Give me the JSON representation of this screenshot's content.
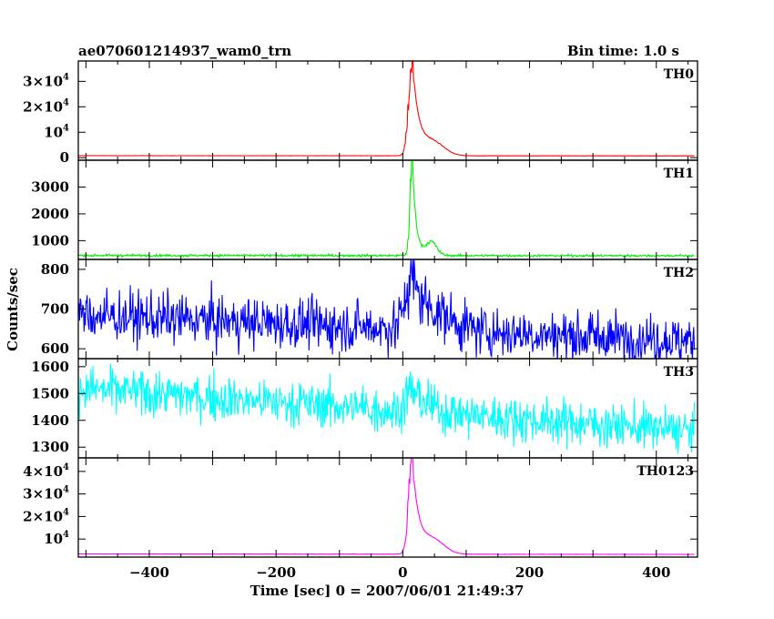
{
  "header": {
    "title": "ae070601214937_wam0_trn",
    "bin_time": "Bin time: 1.0 s"
  },
  "axes": {
    "xlabel": "Time [sec] 0 = 2007/06/01 21:49:37",
    "ylabel": "Counts/sec"
  },
  "chart_data": {
    "type": "line",
    "title": "ae070601214937_wam0_trn",
    "subtitle": "Bin time: 1.0 s",
    "xlabel": "Time [sec] 0 = 2007/06/01 21:49:37",
    "ylabel": "Counts/sec",
    "xlim": [
      -512,
      465
    ],
    "x_ticks": [
      -400,
      -200,
      0,
      200,
      400
    ],
    "x_tick_labels": [
      "−400",
      "−200",
      "0",
      "200",
      "400"
    ],
    "panels": [
      {
        "name": "TH0",
        "color": "#ff0000",
        "ylim": [
          -1000,
          38000
        ],
        "yticks": [
          {
            "value": 0,
            "mant": "0",
            "exp": ""
          },
          {
            "value": 10000,
            "mant": "10",
            "exp": "4"
          },
          {
            "value": 20000,
            "mant": "2×10",
            "exp": "4"
          },
          {
            "value": 30000,
            "mant": "3×10",
            "exp": "4"
          }
        ],
        "base": 800,
        "base_end": 700,
        "noise": 40,
        "burst": {
          "peak_time": 15,
          "peak": 38000,
          "rise": 8,
          "decay": 10
        },
        "shoulder": {
          "time": 48,
          "value": 5000,
          "width": 25
        }
      },
      {
        "name": "TH1",
        "color": "#00ee00",
        "ylim": [
          300,
          4000
        ],
        "yticks": [
          {
            "value": 1000,
            "mant": "1000",
            "exp": ""
          },
          {
            "value": 2000,
            "mant": "2000",
            "exp": ""
          },
          {
            "value": 3000,
            "mant": "3000",
            "exp": ""
          }
        ],
        "base": 450,
        "base_end": 440,
        "noise": 30,
        "burst": {
          "peak_time": 15,
          "peak": 3950,
          "rise": 5,
          "decay": 6
        },
        "shoulder": {
          "time": 45,
          "value": 500,
          "width": 12
        }
      },
      {
        "name": "TH2",
        "color": "#0000ff",
        "ylim": [
          575,
          825
        ],
        "yticks": [
          {
            "value": 600,
            "mant": "600",
            "exp": ""
          },
          {
            "value": 700,
            "mant": "700",
            "exp": ""
          },
          {
            "value": 800,
            "mant": "800",
            "exp": ""
          }
        ],
        "base": 685,
        "base_end": 620,
        "noise": 45,
        "burst": {
          "peak_time": 15,
          "peak": 810,
          "rise": 15,
          "decay": 25
        },
        "shoulder": {
          "time": 60,
          "value": 20,
          "width": 40
        }
      },
      {
        "name": "TH3",
        "color": "#00ffff",
        "ylim": [
          1260,
          1630
        ],
        "yticks": [
          {
            "value": 1300,
            "mant": "1300",
            "exp": ""
          },
          {
            "value": 1400,
            "mant": "1400",
            "exp": ""
          },
          {
            "value": 1500,
            "mant": "1500",
            "exp": ""
          },
          {
            "value": 1600,
            "mant": "1600",
            "exp": ""
          }
        ],
        "base": 1520,
        "base_end": 1360,
        "noise": 60,
        "burst": {
          "peak_time": 15,
          "peak": 1600,
          "rise": 15,
          "decay": 25
        },
        "shoulder": {
          "time": 60,
          "value": 0,
          "width": 40
        }
      },
      {
        "name": "TH0123",
        "color": "#ff00ff",
        "ylim": [
          2000,
          46000
        ],
        "yticks": [
          {
            "value": 10000,
            "mant": "10",
            "exp": "4"
          },
          {
            "value": 20000,
            "mant": "2×10",
            "exp": "4"
          },
          {
            "value": 30000,
            "mant": "3×10",
            "exp": "4"
          },
          {
            "value": 40000,
            "mant": "4×10",
            "exp": "4"
          }
        ],
        "base": 3400,
        "base_end": 3200,
        "noise": 50,
        "burst": {
          "peak_time": 15,
          "peak": 45000,
          "rise": 8,
          "decay": 10
        },
        "shoulder": {
          "time": 48,
          "value": 6000,
          "width": 25
        }
      }
    ],
    "grid": false,
    "legend": "none"
  }
}
